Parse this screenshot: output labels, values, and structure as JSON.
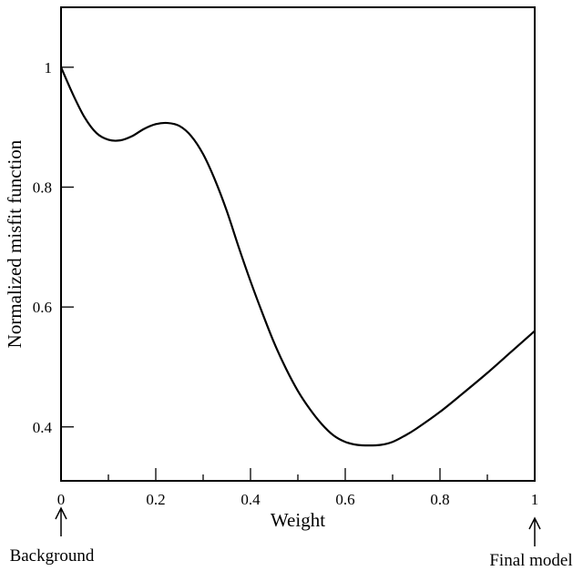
{
  "chart_data": {
    "type": "line",
    "xlabel": "Weight",
    "ylabel": "Normalized misfit function",
    "xlim": [
      0,
      1
    ],
    "ylim": [
      0.31,
      1.1
    ],
    "x_ticks": [
      0,
      0.2,
      0.4,
      0.6,
      0.8,
      1
    ],
    "x_tick_labels": [
      "0",
      "0.2",
      "0.4",
      "0.6",
      "0.8",
      "1"
    ],
    "y_ticks": [
      0.4,
      0.6,
      0.8,
      1
    ],
    "y_tick_labels": [
      "0.4",
      "0.6",
      "0.8",
      "1"
    ],
    "series": [
      {
        "x": [
          0,
          0.025,
          0.05,
          0.075,
          0.1,
          0.125,
          0.15,
          0.175,
          0.2,
          0.225,
          0.25,
          0.275,
          0.3,
          0.325,
          0.35,
          0.375,
          0.4,
          0.425,
          0.45,
          0.475,
          0.5,
          0.525,
          0.55,
          0.575,
          0.6,
          0.625,
          0.65,
          0.675,
          0.7,
          0.725,
          0.75,
          0.8,
          0.85,
          0.9,
          0.95,
          1
        ],
        "y": [
          1.0,
          0.955,
          0.916,
          0.89,
          0.879,
          0.878,
          0.885,
          0.897,
          0.905,
          0.907,
          0.902,
          0.885,
          0.855,
          0.812,
          0.76,
          0.7,
          0.643,
          0.59,
          0.54,
          0.497,
          0.46,
          0.43,
          0.405,
          0.386,
          0.375,
          0.37,
          0.369,
          0.37,
          0.375,
          0.385,
          0.397,
          0.425,
          0.457,
          0.49,
          0.525,
          0.56
        ],
        "color": "#000000"
      }
    ],
    "annotations": [
      {
        "text": "Background",
        "x": 0
      },
      {
        "text": "Final model",
        "x": 1
      }
    ]
  }
}
